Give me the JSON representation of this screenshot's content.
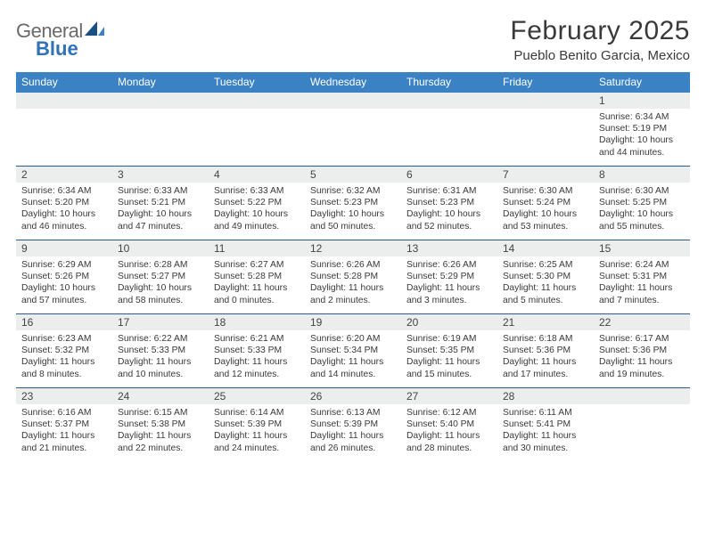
{
  "brand": {
    "general": "General",
    "blue": "Blue",
    "logo_color_dark": "#1a4f86",
    "logo_color_light": "#3b82c4"
  },
  "header": {
    "month_title": "February 2025",
    "location": "Pueblo Benito Garcia, Mexico"
  },
  "colors": {
    "header_bar": "#3b82c4",
    "header_text": "#ffffff",
    "daynum_bg": "#eceded",
    "separator": "#2a5a8a",
    "body_text": "#3a3a3a"
  },
  "typography": {
    "title_fontsize": 30,
    "location_fontsize": 15,
    "dow_fontsize": 12,
    "daynum_fontsize": 12,
    "cell_fontsize": 10.3
  },
  "days_of_week": [
    "Sunday",
    "Monday",
    "Tuesday",
    "Wednesday",
    "Thursday",
    "Friday",
    "Saturday"
  ],
  "weeks": [
    {
      "nums": [
        "",
        "",
        "",
        "",
        "",
        "",
        "1"
      ],
      "cells": [
        null,
        null,
        null,
        null,
        null,
        null,
        {
          "sunrise": "Sunrise: 6:34 AM",
          "sunset": "Sunset: 5:19 PM",
          "daylight": "Daylight: 10 hours and 44 minutes."
        }
      ]
    },
    {
      "nums": [
        "2",
        "3",
        "4",
        "5",
        "6",
        "7",
        "8"
      ],
      "cells": [
        {
          "sunrise": "Sunrise: 6:34 AM",
          "sunset": "Sunset: 5:20 PM",
          "daylight": "Daylight: 10 hours and 46 minutes."
        },
        {
          "sunrise": "Sunrise: 6:33 AM",
          "sunset": "Sunset: 5:21 PM",
          "daylight": "Daylight: 10 hours and 47 minutes."
        },
        {
          "sunrise": "Sunrise: 6:33 AM",
          "sunset": "Sunset: 5:22 PM",
          "daylight": "Daylight: 10 hours and 49 minutes."
        },
        {
          "sunrise": "Sunrise: 6:32 AM",
          "sunset": "Sunset: 5:23 PM",
          "daylight": "Daylight: 10 hours and 50 minutes."
        },
        {
          "sunrise": "Sunrise: 6:31 AM",
          "sunset": "Sunset: 5:23 PM",
          "daylight": "Daylight: 10 hours and 52 minutes."
        },
        {
          "sunrise": "Sunrise: 6:30 AM",
          "sunset": "Sunset: 5:24 PM",
          "daylight": "Daylight: 10 hours and 53 minutes."
        },
        {
          "sunrise": "Sunrise: 6:30 AM",
          "sunset": "Sunset: 5:25 PM",
          "daylight": "Daylight: 10 hours and 55 minutes."
        }
      ]
    },
    {
      "nums": [
        "9",
        "10",
        "11",
        "12",
        "13",
        "14",
        "15"
      ],
      "cells": [
        {
          "sunrise": "Sunrise: 6:29 AM",
          "sunset": "Sunset: 5:26 PM",
          "daylight": "Daylight: 10 hours and 57 minutes."
        },
        {
          "sunrise": "Sunrise: 6:28 AM",
          "sunset": "Sunset: 5:27 PM",
          "daylight": "Daylight: 10 hours and 58 minutes."
        },
        {
          "sunrise": "Sunrise: 6:27 AM",
          "sunset": "Sunset: 5:28 PM",
          "daylight": "Daylight: 11 hours and 0 minutes."
        },
        {
          "sunrise": "Sunrise: 6:26 AM",
          "sunset": "Sunset: 5:28 PM",
          "daylight": "Daylight: 11 hours and 2 minutes."
        },
        {
          "sunrise": "Sunrise: 6:26 AM",
          "sunset": "Sunset: 5:29 PM",
          "daylight": "Daylight: 11 hours and 3 minutes."
        },
        {
          "sunrise": "Sunrise: 6:25 AM",
          "sunset": "Sunset: 5:30 PM",
          "daylight": "Daylight: 11 hours and 5 minutes."
        },
        {
          "sunrise": "Sunrise: 6:24 AM",
          "sunset": "Sunset: 5:31 PM",
          "daylight": "Daylight: 11 hours and 7 minutes."
        }
      ]
    },
    {
      "nums": [
        "16",
        "17",
        "18",
        "19",
        "20",
        "21",
        "22"
      ],
      "cells": [
        {
          "sunrise": "Sunrise: 6:23 AM",
          "sunset": "Sunset: 5:32 PM",
          "daylight": "Daylight: 11 hours and 8 minutes."
        },
        {
          "sunrise": "Sunrise: 6:22 AM",
          "sunset": "Sunset: 5:33 PM",
          "daylight": "Daylight: 11 hours and 10 minutes."
        },
        {
          "sunrise": "Sunrise: 6:21 AM",
          "sunset": "Sunset: 5:33 PM",
          "daylight": "Daylight: 11 hours and 12 minutes."
        },
        {
          "sunrise": "Sunrise: 6:20 AM",
          "sunset": "Sunset: 5:34 PM",
          "daylight": "Daylight: 11 hours and 14 minutes."
        },
        {
          "sunrise": "Sunrise: 6:19 AM",
          "sunset": "Sunset: 5:35 PM",
          "daylight": "Daylight: 11 hours and 15 minutes."
        },
        {
          "sunrise": "Sunrise: 6:18 AM",
          "sunset": "Sunset: 5:36 PM",
          "daylight": "Daylight: 11 hours and 17 minutes."
        },
        {
          "sunrise": "Sunrise: 6:17 AM",
          "sunset": "Sunset: 5:36 PM",
          "daylight": "Daylight: 11 hours and 19 minutes."
        }
      ]
    },
    {
      "nums": [
        "23",
        "24",
        "25",
        "26",
        "27",
        "28",
        ""
      ],
      "cells": [
        {
          "sunrise": "Sunrise: 6:16 AM",
          "sunset": "Sunset: 5:37 PM",
          "daylight": "Daylight: 11 hours and 21 minutes."
        },
        {
          "sunrise": "Sunrise: 6:15 AM",
          "sunset": "Sunset: 5:38 PM",
          "daylight": "Daylight: 11 hours and 22 minutes."
        },
        {
          "sunrise": "Sunrise: 6:14 AM",
          "sunset": "Sunset: 5:39 PM",
          "daylight": "Daylight: 11 hours and 24 minutes."
        },
        {
          "sunrise": "Sunrise: 6:13 AM",
          "sunset": "Sunset: 5:39 PM",
          "daylight": "Daylight: 11 hours and 26 minutes."
        },
        {
          "sunrise": "Sunrise: 6:12 AM",
          "sunset": "Sunset: 5:40 PM",
          "daylight": "Daylight: 11 hours and 28 minutes."
        },
        {
          "sunrise": "Sunrise: 6:11 AM",
          "sunset": "Sunset: 5:41 PM",
          "daylight": "Daylight: 11 hours and 30 minutes."
        },
        null
      ]
    }
  ]
}
